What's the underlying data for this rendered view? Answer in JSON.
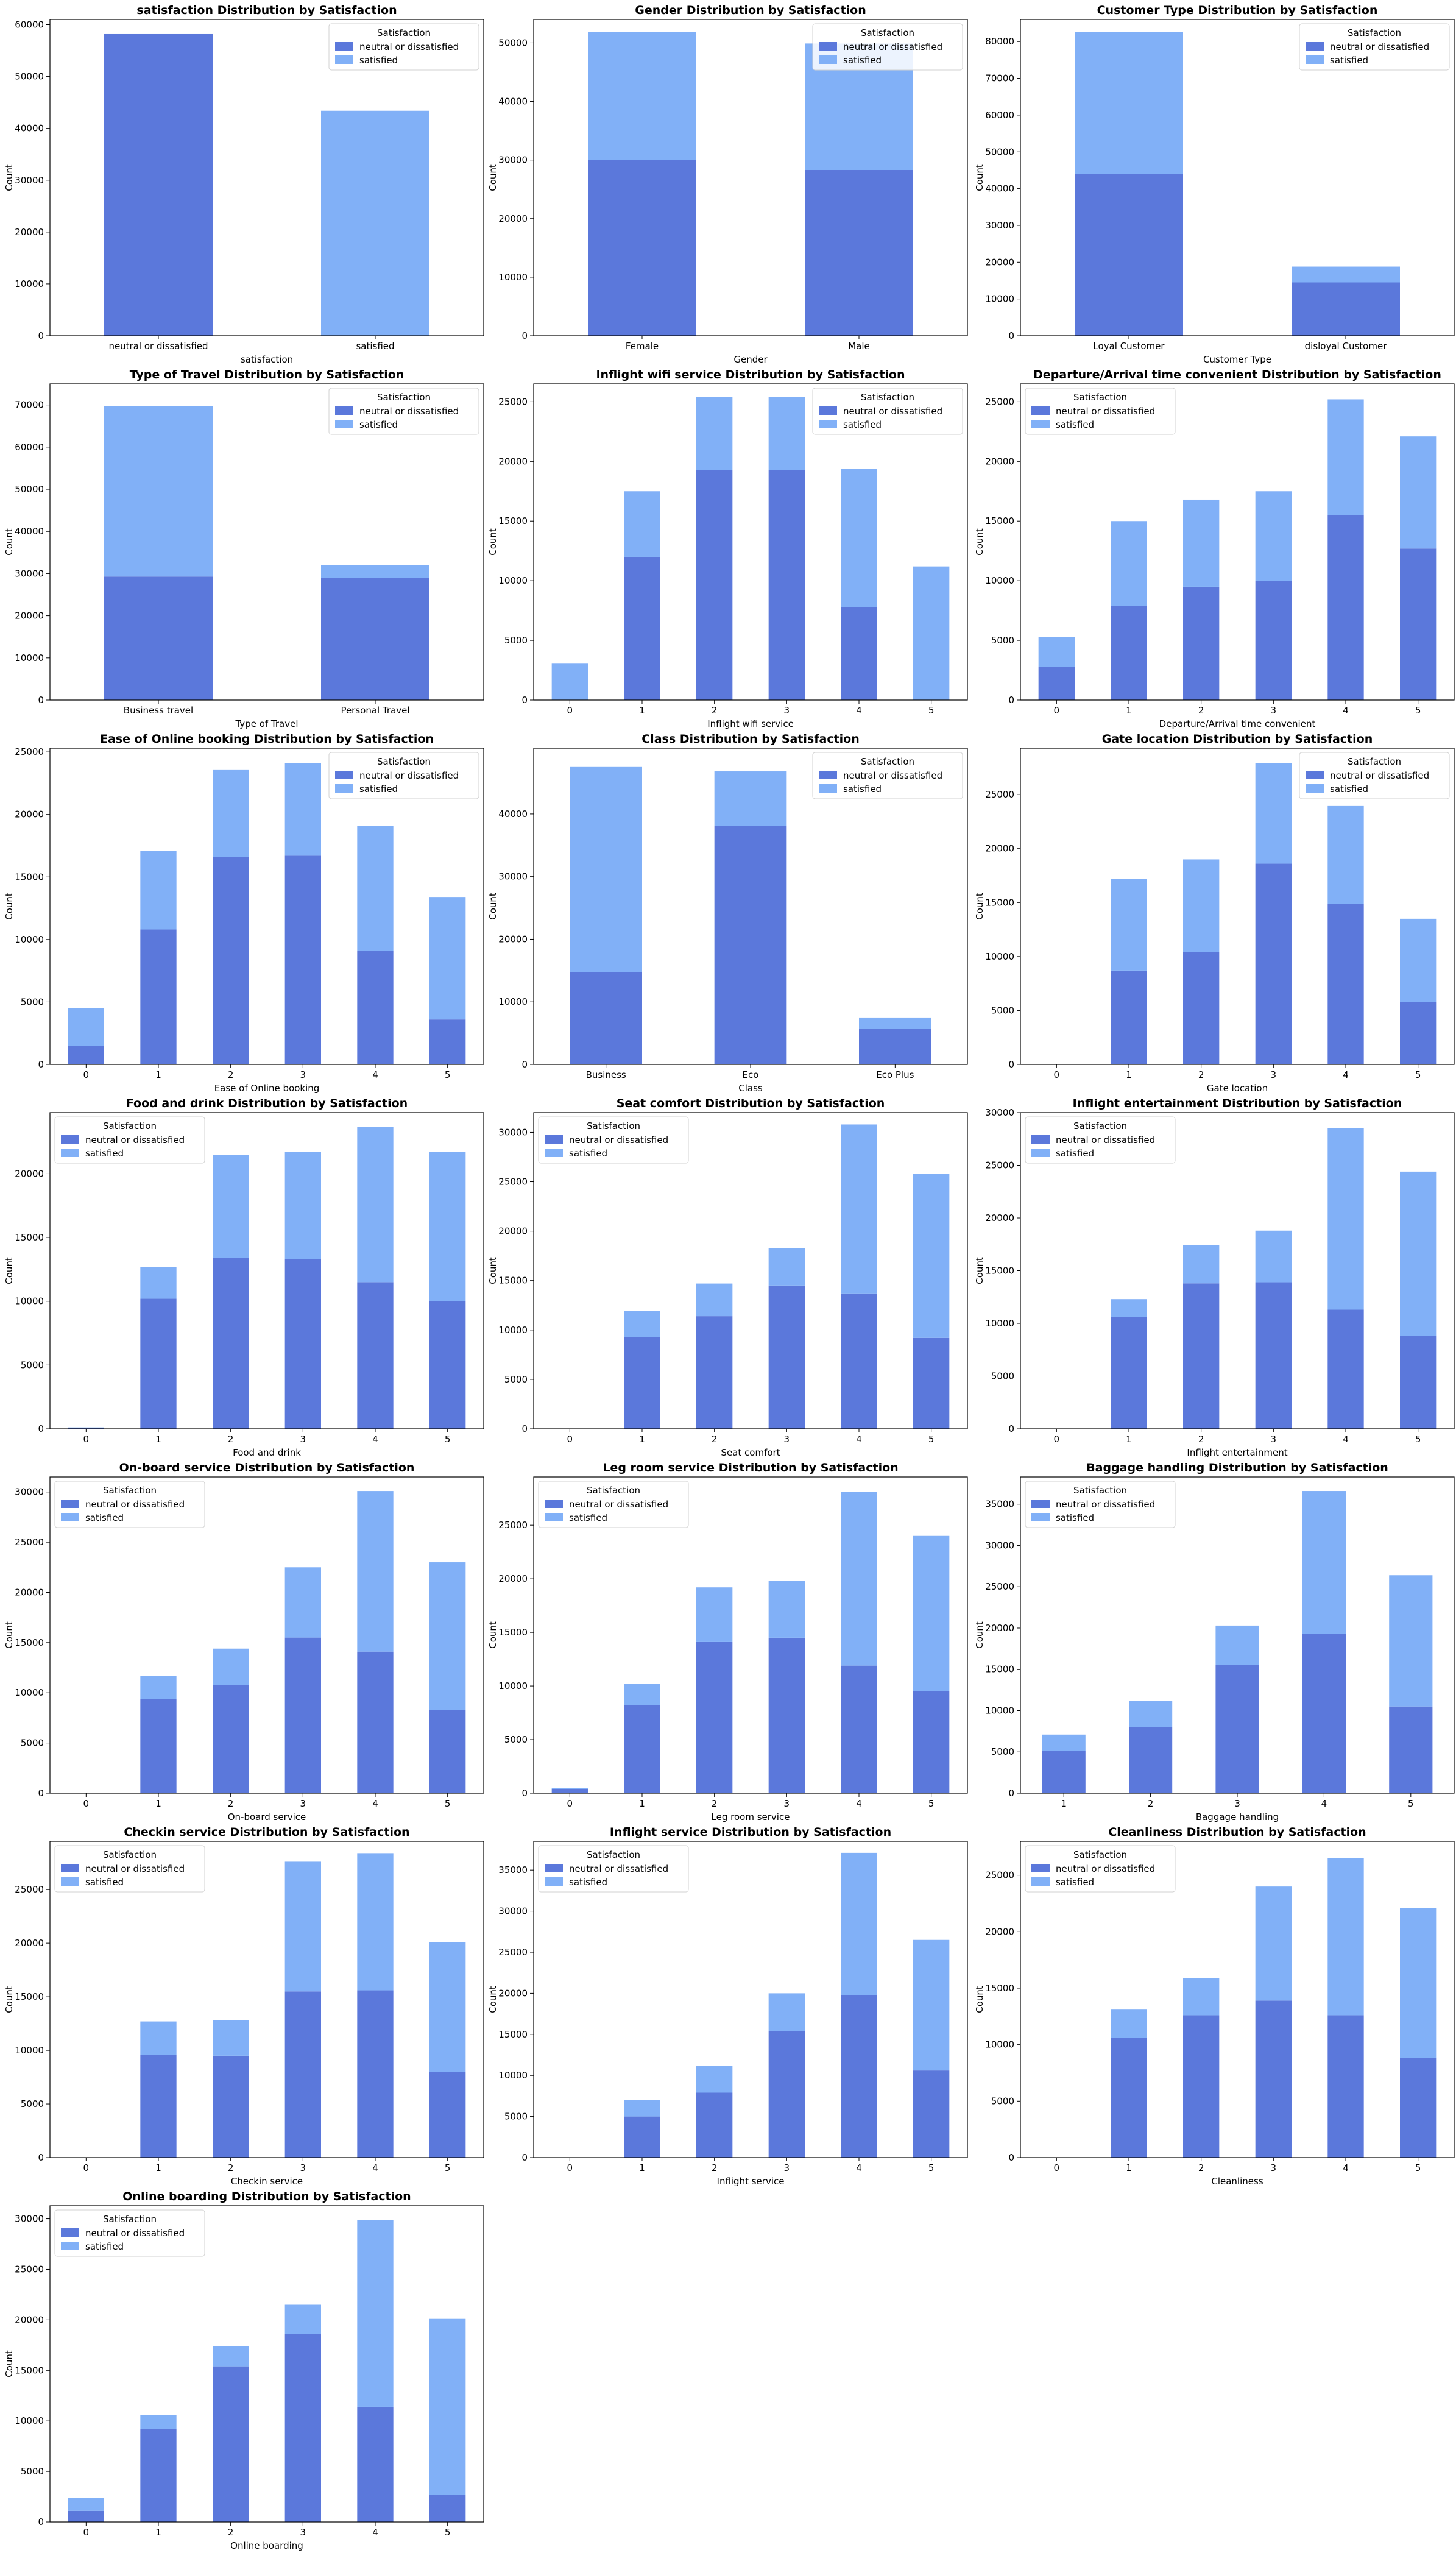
{
  "colors": {
    "neutral": "#5b78db",
    "satisfied": "#81b0f7",
    "frame": "#000000",
    "legend_border": "#d0d0d0"
  },
  "legend": {
    "title": "Satisfaction",
    "labels": [
      "neutral or dissatisfied",
      "satisfied"
    ]
  },
  "chart_data": [
    {
      "type": "bar",
      "stacked": true,
      "title": "satisfaction Distribution by Satisfaction",
      "xlabel": "satisfaction",
      "ylabel": "Count",
      "categories": [
        "neutral or dissatisfied",
        "satisfied"
      ],
      "ylim": [
        0,
        61000
      ],
      "yticks": [
        0,
        10000,
        20000,
        30000,
        40000,
        50000,
        60000
      ],
      "legend_position": "top-right",
      "series": [
        {
          "name": "neutral or dissatisfied",
          "values": [
            58300,
            0
          ]
        },
        {
          "name": "satisfied",
          "values": [
            0,
            43400
          ]
        }
      ]
    },
    {
      "type": "bar",
      "stacked": true,
      "title": "Gender Distribution by Satisfaction",
      "xlabel": "Gender",
      "ylabel": "Count",
      "categories": [
        "Female",
        "Male"
      ],
      "ylim": [
        0,
        54000
      ],
      "yticks": [
        0,
        10000,
        20000,
        30000,
        40000,
        50000
      ],
      "legend_position": "top-right",
      "series": [
        {
          "name": "neutral or dissatisfied",
          "values": [
            30000,
            28300
          ]
        },
        {
          "name": "satisfied",
          "values": [
            21900,
            21600
          ]
        }
      ]
    },
    {
      "type": "bar",
      "stacked": true,
      "title": "Customer Type Distribution by Satisfaction",
      "xlabel": "Customer Type",
      "ylabel": "Count",
      "categories": [
        "Loyal Customer",
        "disloyal Customer"
      ],
      "ylim": [
        0,
        86000
      ],
      "yticks": [
        0,
        10000,
        20000,
        30000,
        40000,
        50000,
        60000,
        70000,
        80000
      ],
      "legend_position": "top-right",
      "series": [
        {
          "name": "neutral or dissatisfied",
          "values": [
            44000,
            14500
          ]
        },
        {
          "name": "satisfied",
          "values": [
            38600,
            4300
          ]
        }
      ]
    },
    {
      "type": "bar",
      "stacked": true,
      "title": "Type of Travel Distribution by Satisfaction",
      "xlabel": "Type of Travel",
      "ylabel": "Count",
      "categories": [
        "Business travel",
        "Personal Travel"
      ],
      "ylim": [
        0,
        75000
      ],
      "yticks": [
        0,
        10000,
        20000,
        30000,
        40000,
        50000,
        60000,
        70000
      ],
      "legend_position": "top-right",
      "series": [
        {
          "name": "neutral or dissatisfied",
          "values": [
            29300,
            29000
          ]
        },
        {
          "name": "satisfied",
          "values": [
            40400,
            3000
          ]
        }
      ]
    },
    {
      "type": "bar",
      "stacked": true,
      "title": "Inflight wifi service Distribution by Satisfaction",
      "xlabel": "Inflight wifi service",
      "ylabel": "Count",
      "categories": [
        "0",
        "1",
        "2",
        "3",
        "4",
        "5"
      ],
      "ylim": [
        0,
        26500
      ],
      "yticks": [
        0,
        5000,
        10000,
        15000,
        20000,
        25000
      ],
      "legend_position": "top-right",
      "series": [
        {
          "name": "neutral or dissatisfied",
          "values": [
            0,
            12000,
            19300,
            19300,
            7800,
            0
          ]
        },
        {
          "name": "satisfied",
          "values": [
            3100,
            5500,
            6100,
            6100,
            11600,
            11200
          ]
        }
      ]
    },
    {
      "type": "bar",
      "stacked": true,
      "title": "Departure/Arrival time convenient Distribution by Satisfaction",
      "xlabel": "Departure/Arrival time convenient",
      "ylabel": "Count",
      "categories": [
        "0",
        "1",
        "2",
        "3",
        "4",
        "5"
      ],
      "ylim": [
        0,
        26500
      ],
      "yticks": [
        0,
        5000,
        10000,
        15000,
        20000,
        25000
      ],
      "legend_position": "top-left",
      "series": [
        {
          "name": "neutral or dissatisfied",
          "values": [
            2800,
            7900,
            9500,
            10000,
            15500,
            12700
          ]
        },
        {
          "name": "satisfied",
          "values": [
            2500,
            7100,
            7300,
            7500,
            9700,
            9400
          ]
        }
      ]
    },
    {
      "type": "bar",
      "stacked": true,
      "title": "Ease of Online booking Distribution by Satisfaction",
      "xlabel": "Ease of Online booking",
      "ylabel": "Count",
      "categories": [
        "0",
        "1",
        "2",
        "3",
        "4",
        "5"
      ],
      "ylim": [
        0,
        25300
      ],
      "yticks": [
        0,
        5000,
        10000,
        15000,
        20000,
        25000
      ],
      "legend_position": "top-right",
      "series": [
        {
          "name": "neutral or dissatisfied",
          "values": [
            1500,
            10800,
            16600,
            16700,
            9100,
            3600
          ]
        },
        {
          "name": "satisfied",
          "values": [
            3000,
            6300,
            7000,
            7400,
            10000,
            9800
          ]
        }
      ]
    },
    {
      "type": "bar",
      "stacked": true,
      "title": "Class Distribution by Satisfaction",
      "xlabel": "Class",
      "ylabel": "Count",
      "categories": [
        "Business",
        "Eco",
        "Eco Plus"
      ],
      "ylim": [
        0,
        50500
      ],
      "yticks": [
        0,
        10000,
        20000,
        30000,
        40000
      ],
      "legend_position": "top-right",
      "series": [
        {
          "name": "neutral or dissatisfied",
          "values": [
            14700,
            38100,
            5700
          ]
        },
        {
          "name": "satisfied",
          "values": [
            32900,
            8700,
            1800
          ]
        }
      ]
    },
    {
      "type": "bar",
      "stacked": true,
      "title": "Gate location Distribution by Satisfaction",
      "xlabel": "Gate location",
      "ylabel": "Count",
      "categories": [
        "0",
        "1",
        "2",
        "3",
        "4",
        "5"
      ],
      "ylim": [
        0,
        29300
      ],
      "yticks": [
        0,
        5000,
        10000,
        15000,
        20000,
        25000
      ],
      "legend_position": "top-right",
      "series": [
        {
          "name": "neutral or dissatisfied",
          "values": [
            0,
            8700,
            10400,
            18600,
            14900,
            5800
          ]
        },
        {
          "name": "satisfied",
          "values": [
            0,
            8500,
            8600,
            9300,
            9100,
            7700
          ]
        }
      ]
    },
    {
      "type": "bar",
      "stacked": true,
      "title": "Food and drink Distribution by Satisfaction",
      "xlabel": "Food and drink",
      "ylabel": "Count",
      "categories": [
        "0",
        "1",
        "2",
        "3",
        "4",
        "5"
      ],
      "ylim": [
        0,
        24800
      ],
      "yticks": [
        0,
        5000,
        10000,
        15000,
        20000
      ],
      "legend_position": "top-left",
      "series": [
        {
          "name": "neutral or dissatisfied",
          "values": [
            80,
            10200,
            13400,
            13300,
            11500,
            10000
          ]
        },
        {
          "name": "satisfied",
          "values": [
            30,
            2500,
            8100,
            8400,
            12200,
            11700
          ]
        }
      ]
    },
    {
      "type": "bar",
      "stacked": true,
      "title": "Seat comfort Distribution by Satisfaction",
      "xlabel": "Seat comfort",
      "ylabel": "Count",
      "categories": [
        "0",
        "1",
        "2",
        "3",
        "4",
        "5"
      ],
      "ylim": [
        0,
        32000
      ],
      "yticks": [
        0,
        5000,
        10000,
        15000,
        20000,
        25000,
        30000
      ],
      "legend_position": "top-left",
      "series": [
        {
          "name": "neutral or dissatisfied",
          "values": [
            0,
            9300,
            11400,
            14500,
            13700,
            9200
          ]
        },
        {
          "name": "satisfied",
          "values": [
            0,
            2600,
            3300,
            3800,
            17100,
            16600
          ]
        }
      ]
    },
    {
      "type": "bar",
      "stacked": true,
      "title": "Inflight entertainment Distribution by Satisfaction",
      "xlabel": "Inflight entertainment",
      "ylabel": "Count",
      "categories": [
        "0",
        "1",
        "2",
        "3",
        "4",
        "5"
      ],
      "ylim": [
        0,
        30000
      ],
      "yticks": [
        0,
        5000,
        10000,
        15000,
        20000,
        25000,
        30000
      ],
      "legend_position": "top-left",
      "series": [
        {
          "name": "neutral or dissatisfied",
          "values": [
            0,
            10600,
            13800,
            13900,
            11300,
            8800
          ]
        },
        {
          "name": "satisfied",
          "values": [
            0,
            1700,
            3600,
            4900,
            17200,
            15600
          ]
        }
      ]
    },
    {
      "type": "bar",
      "stacked": true,
      "title": "On-board service Distribution by Satisfaction",
      "xlabel": "On-board service",
      "ylabel": "Count",
      "categories": [
        "0",
        "1",
        "2",
        "3",
        "4",
        "5"
      ],
      "ylim": [
        0,
        31500
      ],
      "yticks": [
        0,
        5000,
        10000,
        15000,
        20000,
        25000,
        30000
      ],
      "legend_position": "top-left",
      "series": [
        {
          "name": "neutral or dissatisfied",
          "values": [
            0,
            9400,
            10800,
            15500,
            14100,
            8300
          ]
        },
        {
          "name": "satisfied",
          "values": [
            0,
            2300,
            3600,
            7000,
            16000,
            14700
          ]
        }
      ]
    },
    {
      "type": "bar",
      "stacked": true,
      "title": "Leg room service Distribution by Satisfaction",
      "xlabel": "Leg room service",
      "ylabel": "Count",
      "categories": [
        "0",
        "1",
        "2",
        "3",
        "4",
        "5"
      ],
      "ylim": [
        0,
        29500
      ],
      "yticks": [
        0,
        5000,
        10000,
        15000,
        20000,
        25000
      ],
      "legend_position": "top-left",
      "series": [
        {
          "name": "neutral or dissatisfied",
          "values": [
            400,
            8200,
            14100,
            14500,
            11900,
            9500
          ]
        },
        {
          "name": "satisfied",
          "values": [
            70,
            2000,
            5100,
            5300,
            16200,
            14500
          ]
        }
      ]
    },
    {
      "type": "bar",
      "stacked": true,
      "title": "Baggage handling Distribution by Satisfaction",
      "xlabel": "Baggage handling",
      "ylabel": "Count",
      "categories": [
        "1",
        "2",
        "3",
        "4",
        "5"
      ],
      "ylim": [
        0,
        38300
      ],
      "yticks": [
        0,
        5000,
        10000,
        15000,
        20000,
        25000,
        30000,
        35000
      ],
      "legend_position": "top-left",
      "series": [
        {
          "name": "neutral or dissatisfied",
          "values": [
            5100,
            8000,
            15500,
            19300,
            10500
          ]
        },
        {
          "name": "satisfied",
          "values": [
            2000,
            3200,
            4800,
            17300,
            15900
          ]
        }
      ]
    },
    {
      "type": "bar",
      "stacked": true,
      "title": "Checkin service Distribution by Satisfaction",
      "xlabel": "Checkin service",
      "ylabel": "Count",
      "categories": [
        "0",
        "1",
        "2",
        "3",
        "4",
        "5"
      ],
      "ylim": [
        0,
        29500
      ],
      "yticks": [
        0,
        5000,
        10000,
        15000,
        20000,
        25000
      ],
      "legend_position": "top-left",
      "series": [
        {
          "name": "neutral or dissatisfied",
          "values": [
            0,
            9600,
            9500,
            15500,
            15600,
            8000
          ]
        },
        {
          "name": "satisfied",
          "values": [
            0,
            3100,
            3300,
            12100,
            12800,
            12100
          ]
        }
      ]
    },
    {
      "type": "bar",
      "stacked": true,
      "title": "Inflight service Distribution by Satisfaction",
      "xlabel": "Inflight service",
      "ylabel": "Count",
      "categories": [
        "0",
        "1",
        "2",
        "3",
        "4",
        "5"
      ],
      "ylim": [
        0,
        38500
      ],
      "yticks": [
        0,
        5000,
        10000,
        15000,
        20000,
        25000,
        30000,
        35000
      ],
      "legend_position": "top-left",
      "series": [
        {
          "name": "neutral or dissatisfied",
          "values": [
            0,
            5000,
            7900,
            15400,
            19800,
            10600
          ]
        },
        {
          "name": "satisfied",
          "values": [
            0,
            2000,
            3300,
            4600,
            17300,
            15900
          ]
        }
      ]
    },
    {
      "type": "bar",
      "stacked": true,
      "title": "Cleanliness Distribution by Satisfaction",
      "xlabel": "Cleanliness",
      "ylabel": "Count",
      "categories": [
        "0",
        "1",
        "2",
        "3",
        "4",
        "5"
      ],
      "ylim": [
        0,
        28000
      ],
      "yticks": [
        0,
        5000,
        10000,
        15000,
        20000,
        25000
      ],
      "legend_position": "top-left",
      "series": [
        {
          "name": "neutral or dissatisfied",
          "values": [
            0,
            10600,
            12600,
            13900,
            12600,
            8800
          ]
        },
        {
          "name": "satisfied",
          "values": [
            0,
            2500,
            3300,
            10100,
            13900,
            13300
          ]
        }
      ]
    },
    {
      "type": "bar",
      "stacked": true,
      "title": "Online boarding Distribution by Satisfaction",
      "xlabel": "Online boarding",
      "ylabel": "Count",
      "categories": [
        "0",
        "1",
        "2",
        "3",
        "4",
        "5"
      ],
      "ylim": [
        0,
        31300
      ],
      "yticks": [
        0,
        5000,
        10000,
        15000,
        20000,
        25000,
        30000
      ],
      "legend_position": "top-left",
      "series": [
        {
          "name": "neutral or dissatisfied",
          "values": [
            1100,
            9200,
            15400,
            18600,
            11400,
            2700
          ]
        },
        {
          "name": "satisfied",
          "values": [
            1300,
            1400,
            2000,
            2900,
            18500,
            17400
          ]
        }
      ]
    }
  ]
}
